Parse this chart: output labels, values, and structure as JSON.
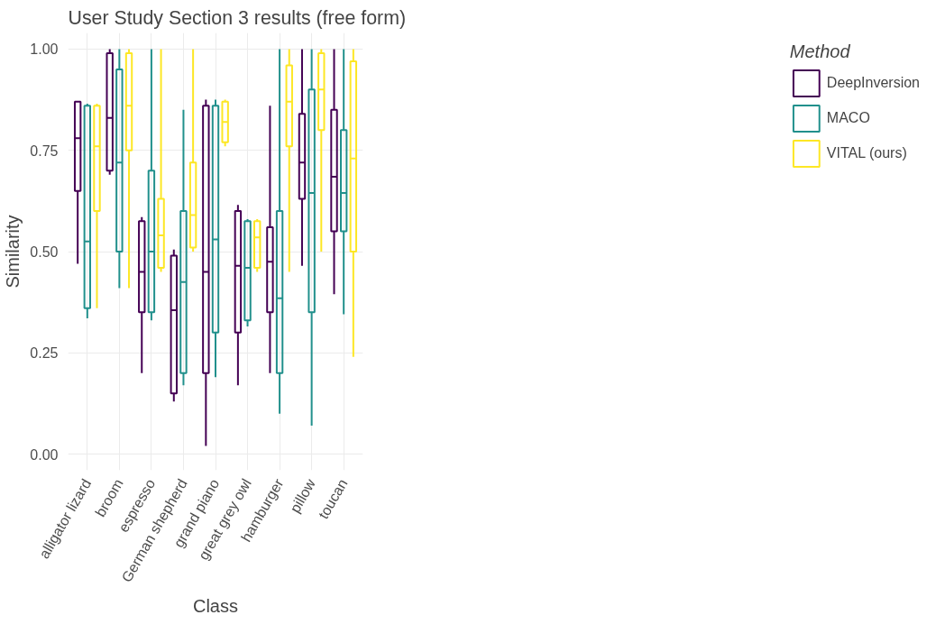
{
  "chart_data": {
    "type": "box",
    "title": "User Study Section 3 results (free form)",
    "xlabel": "Class",
    "ylabel": "Similarity",
    "legend_title": "Method",
    "legend": "right",
    "grid": true,
    "categories": [
      "alligator lizard",
      "broom",
      "espresso",
      "German shepherd",
      "grand piano",
      "great grey owl",
      "hamburger",
      "pillow",
      "toucan"
    ],
    "ylim": [
      -0.04,
      1.04
    ],
    "yticks": [
      {
        "value": 0,
        "label": "0.00"
      },
      {
        "value": 0.25,
        "label": "0.25"
      },
      {
        "value": 0.5,
        "label": "0.50"
      },
      {
        "value": 0.75,
        "label": "0.75"
      },
      {
        "value": 1,
        "label": "1.00"
      }
    ],
    "series": [
      {
        "name": "DeepInversion",
        "color": "#440154",
        "boxes": [
          {
            "low": 0.47,
            "q1": 0.65,
            "median": 0.78,
            "q3": 0.87,
            "high": 0.87
          },
          {
            "low": 0.69,
            "q1": 0.7,
            "median": 0.83,
            "q3": 0.99,
            "high": 1.0
          },
          {
            "low": 0.2,
            "q1": 0.35,
            "median": 0.45,
            "q3": 0.575,
            "high": 0.585
          },
          {
            "low": 0.13,
            "q1": 0.15,
            "median": 0.355,
            "q3": 0.49,
            "high": 0.505
          },
          {
            "low": 0.02,
            "q1": 0.2,
            "median": 0.45,
            "q3": 0.86,
            "high": 0.875
          },
          {
            "low": 0.17,
            "q1": 0.3,
            "median": 0.465,
            "q3": 0.6,
            "high": 0.615
          },
          {
            "low": 0.2,
            "q1": 0.35,
            "median": 0.475,
            "q3": 0.56,
            "high": 0.86
          },
          {
            "low": 0.465,
            "q1": 0.63,
            "median": 0.72,
            "q3": 0.84,
            "high": 1.0
          },
          {
            "low": 0.395,
            "q1": 0.55,
            "median": 0.685,
            "q3": 0.85,
            "high": 1.0
          }
        ]
      },
      {
        "name": "MACO",
        "color": "#21908c",
        "boxes": [
          {
            "low": 0.335,
            "q1": 0.36,
            "median": 0.525,
            "q3": 0.86,
            "high": 0.865
          },
          {
            "low": 0.41,
            "q1": 0.5,
            "median": 0.72,
            "q3": 0.95,
            "high": 1.0
          },
          {
            "low": 0.33,
            "q1": 0.35,
            "median": 0.5,
            "q3": 0.7,
            "high": 1.0
          },
          {
            "low": 0.17,
            "q1": 0.2,
            "median": 0.425,
            "q3": 0.6,
            "high": 0.85
          },
          {
            "low": 0.19,
            "q1": 0.3,
            "median": 0.53,
            "q3": 0.86,
            "high": 0.875
          },
          {
            "low": 0.315,
            "q1": 0.33,
            "median": 0.46,
            "q3": 0.575,
            "high": 0.58
          },
          {
            "low": 0.1,
            "q1": 0.2,
            "median": 0.385,
            "q3": 0.6,
            "high": 1.0
          },
          {
            "low": 0.07,
            "q1": 0.35,
            "median": 0.645,
            "q3": 0.9,
            "high": 1.0
          },
          {
            "low": 0.345,
            "q1": 0.55,
            "median": 0.645,
            "q3": 0.8,
            "high": 1.0
          }
        ]
      },
      {
        "name": "VITAL (ours)",
        "color": "#fde725",
        "boxes": [
          {
            "low": 0.36,
            "q1": 0.6,
            "median": 0.76,
            "q3": 0.86,
            "high": 0.865
          },
          {
            "low": 0.41,
            "q1": 0.75,
            "median": 0.86,
            "q3": 0.99,
            "high": 1.0
          },
          {
            "low": 0.45,
            "q1": 0.46,
            "median": 0.54,
            "q3": 0.63,
            "high": 1.0
          },
          {
            "low": 0.5,
            "q1": 0.51,
            "median": 0.59,
            "q3": 0.72,
            "high": 1.0
          },
          {
            "low": 0.76,
            "q1": 0.77,
            "median": 0.82,
            "q3": 0.87,
            "high": 0.875
          },
          {
            "low": 0.45,
            "q1": 0.46,
            "median": 0.535,
            "q3": 0.575,
            "high": 0.58
          },
          {
            "low": 0.45,
            "q1": 0.76,
            "median": 0.87,
            "q3": 0.96,
            "high": 1.0
          },
          {
            "low": 0.5,
            "q1": 0.8,
            "median": 0.9,
            "q3": 0.99,
            "high": 1.0
          },
          {
            "low": 0.24,
            "q1": 0.5,
            "median": 0.73,
            "q3": 0.97,
            "high": 1.0
          }
        ]
      }
    ]
  }
}
